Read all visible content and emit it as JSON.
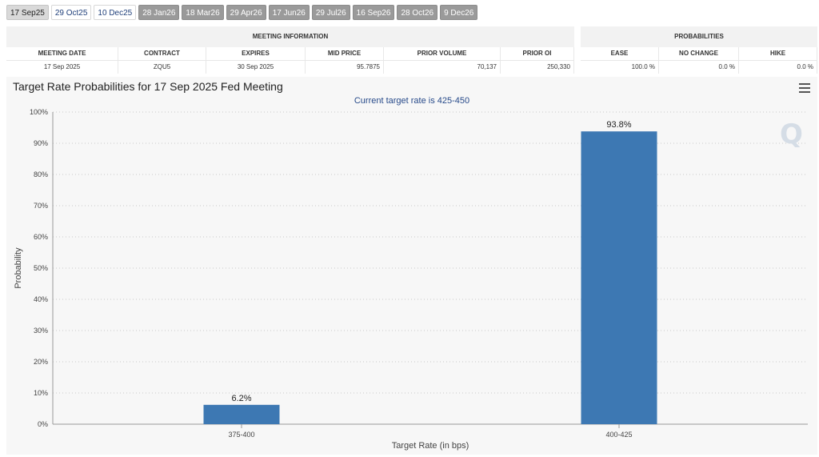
{
  "tabs": [
    {
      "label": "17 Sep25",
      "state": "active"
    },
    {
      "label": "29 Oct25",
      "state": "plain"
    },
    {
      "label": "10 Dec25",
      "state": "plain"
    },
    {
      "label": "28 Jan26",
      "state": "dim"
    },
    {
      "label": "18 Mar26",
      "state": "dim"
    },
    {
      "label": "29 Apr26",
      "state": "dim"
    },
    {
      "label": "17 Jun26",
      "state": "dim"
    },
    {
      "label": "29 Jul26",
      "state": "dim"
    },
    {
      "label": "16 Sep26",
      "state": "dim"
    },
    {
      "label": "28 Oct26",
      "state": "dim"
    },
    {
      "label": "9 Dec26",
      "state": "dim"
    }
  ],
  "meeting_info": {
    "title": "MEETING INFORMATION",
    "headers": [
      "MEETING DATE",
      "CONTRACT",
      "EXPIRES",
      "MID PRICE",
      "PRIOR VOLUME",
      "PRIOR OI"
    ],
    "values": [
      "17 Sep 2025",
      "ZQU5",
      "30 Sep 2025",
      "95.7875",
      "70,137",
      "250,330"
    ]
  },
  "probabilities": {
    "title": "PROBABILITIES",
    "headers": [
      "EASE",
      "NO CHANGE",
      "HIKE"
    ],
    "values": [
      "100.0 %",
      "0.0 %",
      "0.0 %"
    ]
  },
  "chart": {
    "title": "Target Rate Probabilities for 17 Sep 2025 Fed Meeting",
    "subtitle": "Current target rate is 425-450",
    "watermark": "Q"
  },
  "chart_data": {
    "type": "bar",
    "categories": [
      "375-400",
      "400-425"
    ],
    "values": [
      6.2,
      93.8
    ],
    "data_labels": [
      "6.2%",
      "93.8%"
    ],
    "title": "Target Rate Probabilities for 17 Sep 2025 Fed Meeting",
    "xlabel": "Target Rate (in bps)",
    "ylabel": "Probability",
    "ylim": [
      0,
      100
    ],
    "yticks": [
      "0%",
      "10%",
      "20%",
      "30%",
      "40%",
      "50%",
      "60%",
      "70%",
      "80%",
      "90%",
      "100%"
    ],
    "grid": true,
    "bar_color": "#3d78b3"
  }
}
